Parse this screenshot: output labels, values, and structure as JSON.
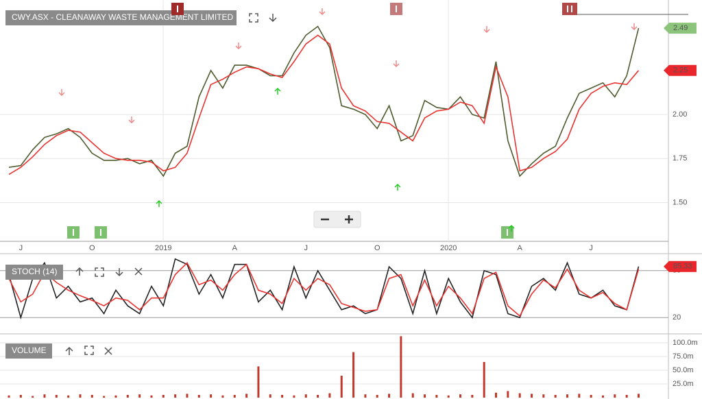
{
  "chart_data": [
    {
      "type": "line",
      "title": "CWY.ASX - CLEANAWAY WASTE MANAGEMENT LIMITED",
      "categories": [
        null,
        "J",
        null,
        null,
        null,
        null,
        null,
        "O",
        null,
        null,
        null,
        null,
        null,
        "2019",
        null,
        null,
        null,
        null,
        null,
        "A",
        null,
        null,
        null,
        null,
        null,
        "J",
        null,
        null,
        null,
        null,
        null,
        "O",
        null,
        null,
        null,
        null,
        null,
        "2020",
        null,
        null,
        null,
        null,
        null,
        "A",
        null,
        null,
        null,
        null,
        null,
        "J",
        null,
        null,
        null,
        null
      ],
      "series": [
        {
          "color": "#4d5a2e",
          "values": [
            1.7,
            1.71,
            1.8,
            1.87,
            1.89,
            1.92,
            1.87,
            1.78,
            1.74,
            1.74,
            1.75,
            1.72,
            1.74,
            1.65,
            1.78,
            1.82,
            2.1,
            2.25,
            2.15,
            2.28,
            2.28,
            2.26,
            2.22,
            2.22,
            2.35,
            2.45,
            2.5,
            2.38,
            2.05,
            2.03,
            2.0,
            1.92,
            2.05,
            1.85,
            1.88,
            2.08,
            2.04,
            2.03,
            2.1,
            2.0,
            1.98,
            2.3,
            1.85,
            1.65,
            1.72,
            1.78,
            1.82,
            1.98,
            2.12,
            2.15,
            2.18,
            2.1,
            2.22,
            2.49
          ]
        },
        {
          "color": "#e8322f",
          "values": [
            1.66,
            1.7,
            1.76,
            1.83,
            1.88,
            1.91,
            1.9,
            1.84,
            1.78,
            1.75,
            1.74,
            1.74,
            1.73,
            1.68,
            1.7,
            1.78,
            1.98,
            2.17,
            2.2,
            2.24,
            2.27,
            2.26,
            2.23,
            2.21,
            2.3,
            2.4,
            2.45,
            2.4,
            2.15,
            2.05,
            2.02,
            1.96,
            1.95,
            1.9,
            1.85,
            1.98,
            2.02,
            2.03,
            2.07,
            2.05,
            1.95,
            2.27,
            2.1,
            1.68,
            1.7,
            1.75,
            1.79,
            1.86,
            2.03,
            2.12,
            2.16,
            2.18,
            2.17,
            2.25
          ]
        }
      ],
      "ylim": [
        1.28,
        2.65
      ],
      "yticks": [
        {
          "value": 1.5,
          "label": "1.50"
        },
        1.75,
        {
          "value": 2,
          "label": "2.00"
        }
      ],
      "tags": [
        {
          "value": 2.49,
          "label": "2.49",
          "color": "#8bc47a"
        },
        {
          "value": 2.25,
          "label": "2.25",
          "color": "#e8262b"
        }
      ],
      "grid": true
    },
    {
      "type": "line",
      "title": "STOCH (14)",
      "series": [
        {
          "color": "#222222",
          "values": [
            75,
            20,
            70,
            90,
            45,
            60,
            40,
            45,
            25,
            55,
            35,
            25,
            60,
            35,
            95,
            88,
            50,
            75,
            45,
            88,
            88,
            40,
            55,
            30,
            85,
            45,
            80,
            55,
            30,
            35,
            25,
            30,
            85,
            70,
            25,
            80,
            25,
            70,
            40,
            20,
            80,
            75,
            25,
            20,
            60,
            70,
            55,
            90,
            50,
            45,
            55,
            35,
            30,
            85.33
          ]
        },
        {
          "color": "#e8322f",
          "values": [
            70,
            40,
            50,
            78,
            65,
            55,
            48,
            42,
            35,
            45,
            42,
            30,
            45,
            45,
            75,
            90,
            62,
            68,
            55,
            75,
            88,
            55,
            50,
            38,
            70,
            55,
            70,
            62,
            38,
            33,
            28,
            30,
            70,
            75,
            35,
            68,
            35,
            60,
            45,
            25,
            70,
            78,
            35,
            22,
            50,
            68,
            58,
            82,
            55,
            45,
            52,
            38,
            30,
            82
          ]
        }
      ],
      "ylim": [
        0,
        100
      ],
      "yticks": [
        20,
        80
      ],
      "tags": [
        {
          "value": 85.33,
          "label": "85.33",
          "color": "#e8262b"
        }
      ],
      "grid": true
    },
    {
      "type": "bar",
      "title": "VOLUME",
      "color": "#c0392b",
      "values": [
        4,
        5,
        3,
        6,
        5,
        4,
        6,
        5,
        3,
        4,
        5,
        6,
        4,
        5,
        6,
        7,
        5,
        6,
        4,
        5,
        7,
        57,
        6,
        5,
        4,
        6,
        5,
        8,
        40,
        83,
        6,
        5,
        7,
        112,
        8,
        6,
        5,
        4,
        6,
        5,
        65,
        9,
        12,
        8,
        7,
        6,
        5,
        6,
        7,
        5,
        4,
        6,
        5,
        7
      ],
      "ylim": [
        0,
        112.5
      ],
      "yticks": [
        {
          "value": 25,
          "label": "25.0m"
        },
        {
          "value": 50,
          "label": "50.0m"
        },
        {
          "value": 75,
          "label": "75.0m"
        },
        {
          "value": 100,
          "label": "100.0m"
        }
      ],
      "grid": true
    }
  ]
}
